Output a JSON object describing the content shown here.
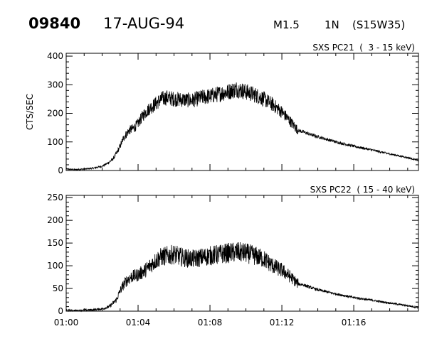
{
  "header": {
    "event_number": "09840",
    "date": "17-AUG-94",
    "flare_class": "M1.5",
    "optical_class": "1N",
    "location": "(S15W35)"
  },
  "chart_data": [
    {
      "type": "line",
      "title": "SXS PC21  (  3 - 15 keV)",
      "ylabel": "CTS/SEC",
      "xlabel": "",
      "xlim": [
        "01:00",
        "01:19.6"
      ],
      "ylim": [
        0,
        410
      ],
      "yticks": [
        0,
        100,
        200,
        300,
        400
      ],
      "xticks": [
        "01:00",
        "01:04",
        "01:08",
        "01:12",
        "01:16"
      ],
      "grid": false,
      "series": [
        {
          "x": [
            "01:00",
            "01:00.5",
            "01:01",
            "01:01.5",
            "01:02",
            "01:02.3",
            "01:02.6",
            "01:02.8",
            "01:03",
            "01:03.2",
            "01:03.5",
            "01:03.8",
            "01:04",
            "01:04.3",
            "01:04.6",
            "01:05",
            "01:05.3",
            "01:05.6",
            "01:06",
            "01:06.5",
            "01:07",
            "01:07.5",
            "01:08",
            "01:08.5",
            "01:09",
            "01:09.5",
            "01:10",
            "01:10.5",
            "01:11",
            "01:11.5",
            "01:12",
            "01:12.5",
            "01:12.9",
            "01:13.2",
            "01:13.5",
            "01:14",
            "01:15",
            "01:16",
            "01:17",
            "01:18",
            "01:19",
            "01:19.6"
          ],
          "y": [
            5,
            3,
            5,
            8,
            15,
            25,
            40,
            60,
            85,
            115,
            140,
            150,
            165,
            195,
            215,
            235,
            250,
            255,
            250,
            248,
            245,
            255,
            260,
            268,
            275,
            285,
            275,
            265,
            250,
            230,
            205,
            170,
            140,
            135,
            128,
            118,
            100,
            85,
            72,
            58,
            45,
            35
          ]
        }
      ]
    },
    {
      "type": "line",
      "title": "SXS PC22  ( 15 - 40 keV)",
      "ylabel": "",
      "xlabel": "",
      "xlim": [
        "01:00",
        "01:19.6"
      ],
      "ylim": [
        0,
        255
      ],
      "yticks": [
        0,
        50,
        100,
        150,
        200,
        250
      ],
      "xticks": [
        "01:00",
        "01:04",
        "01:08",
        "01:12",
        "01:16"
      ],
      "grid": false,
      "series": [
        {
          "x": [
            "01:00",
            "01:00.5",
            "01:01",
            "01:01.5",
            "01:02",
            "01:02.4",
            "01:02.8",
            "01:03",
            "01:03.3",
            "01:03.6",
            "01:04",
            "01:04.4",
            "01:04.8",
            "01:05.2",
            "01:05.6",
            "01:06",
            "01:06.5",
            "01:07",
            "01:07.5",
            "01:08",
            "01:08.5",
            "01:09",
            "01:09.5",
            "01:10",
            "01:10.5",
            "01:11",
            "01:11.5",
            "01:12",
            "01:12.5",
            "01:12.9",
            "01:13.2",
            "01:13.6",
            "01:14",
            "01:15",
            "01:16",
            "01:17",
            "01:18",
            "01:19",
            "01:19.6"
          ],
          "y": [
            2,
            1,
            2,
            3,
            5,
            10,
            25,
            45,
            65,
            75,
            80,
            90,
            105,
            118,
            122,
            125,
            118,
            115,
            118,
            122,
            125,
            128,
            130,
            128,
            122,
            115,
            100,
            90,
            75,
            60,
            58,
            52,
            47,
            38,
            30,
            24,
            18,
            12,
            8
          ]
        }
      ]
    }
  ]
}
